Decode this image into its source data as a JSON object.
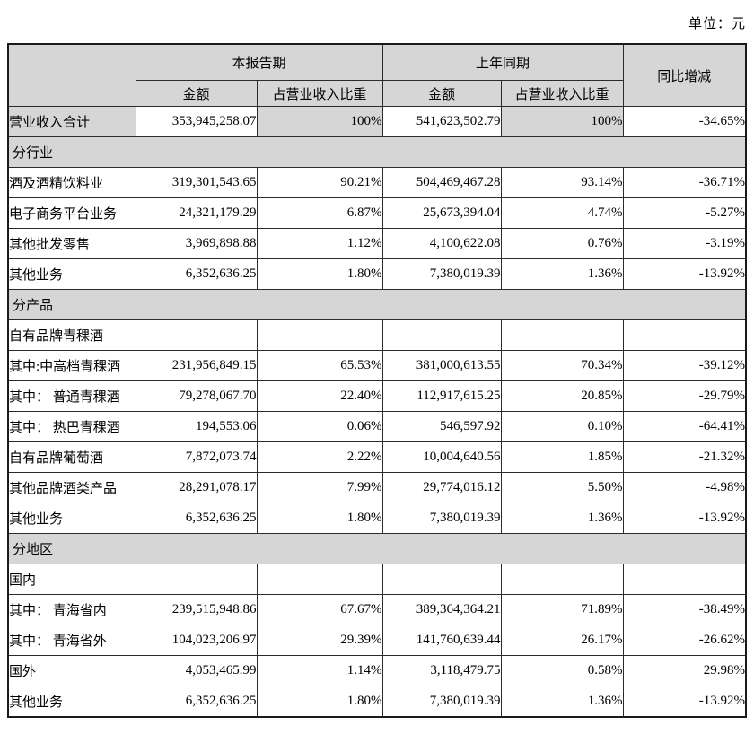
{
  "unit_label": "单位：元",
  "accent_colors": {
    "header_fill": "#d6d6d6",
    "border": "#2b2b2b",
    "background": "#ffffff"
  },
  "table": {
    "header": {
      "corner": "",
      "col_current": "本报告期",
      "col_prior": "上年同期",
      "col_yoy": "同比增减",
      "subs": [
        "金额",
        "占营业收入比重",
        "金额",
        "占营业收入比重"
      ]
    },
    "rows": [
      {
        "type": "data",
        "shaded": true,
        "label": "营业收入合计",
        "cur_amt": "353,945,258.07",
        "cur_pct": "100%",
        "pri_amt": "541,623,502.79",
        "pri_pct": "100%",
        "yoy": "-34.65%"
      },
      {
        "type": "section",
        "label": "分行业"
      },
      {
        "type": "data",
        "shaded": false,
        "label": "酒及酒精饮料业",
        "cur_amt": "319,301,543.65",
        "cur_pct": "90.21%",
        "pri_amt": "504,469,467.28",
        "pri_pct": "93.14%",
        "yoy": "-36.71%"
      },
      {
        "type": "data",
        "shaded": false,
        "label": "电子商务平台业务",
        "cur_amt": "24,321,179.29",
        "cur_pct": "6.87%",
        "pri_amt": "25,673,394.04",
        "pri_pct": "4.74%",
        "yoy": "-5.27%"
      },
      {
        "type": "data",
        "shaded": false,
        "label": "其他批发零售",
        "cur_amt": "3,969,898.88",
        "cur_pct": "1.12%",
        "pri_amt": "4,100,622.08",
        "pri_pct": "0.76%",
        "yoy": "-3.19%"
      },
      {
        "type": "data",
        "shaded": false,
        "label": "其他业务",
        "cur_amt": "6,352,636.25",
        "cur_pct": "1.80%",
        "pri_amt": "7,380,019.39",
        "pri_pct": "1.36%",
        "yoy": "-13.92%"
      },
      {
        "type": "section",
        "label": "分产品"
      },
      {
        "type": "data",
        "shaded": false,
        "label": "自有品牌青稞酒",
        "cur_amt": "",
        "cur_pct": "",
        "pri_amt": "",
        "pri_pct": "",
        "yoy": ""
      },
      {
        "type": "data",
        "shaded": false,
        "label": "其中:中高档青稞酒",
        "cur_amt": "231,956,849.15",
        "cur_pct": "65.53%",
        "pri_amt": "381,000,613.55",
        "pri_pct": "70.34%",
        "yoy": "-39.12%"
      },
      {
        "type": "data",
        "shaded": false,
        "label": "其中： 普通青稞酒",
        "cur_amt": "79,278,067.70",
        "cur_pct": "22.40%",
        "pri_amt": "112,917,615.25",
        "pri_pct": "20.85%",
        "yoy": "-29.79%"
      },
      {
        "type": "data",
        "shaded": false,
        "label": "其中： 热巴青稞酒",
        "cur_amt": "194,553.06",
        "cur_pct": "0.06%",
        "pri_amt": "546,597.92",
        "pri_pct": "0.10%",
        "yoy": "-64.41%"
      },
      {
        "type": "data",
        "shaded": false,
        "label": "自有品牌葡萄酒",
        "cur_amt": "7,872,073.74",
        "cur_pct": "2.22%",
        "pri_amt": "10,004,640.56",
        "pri_pct": "1.85%",
        "yoy": "-21.32%"
      },
      {
        "type": "data",
        "shaded": false,
        "label": "其他品牌酒类产品",
        "cur_amt": "28,291,078.17",
        "cur_pct": "7.99%",
        "pri_amt": "29,774,016.12",
        "pri_pct": "5.50%",
        "yoy": "-4.98%"
      },
      {
        "type": "data",
        "shaded": false,
        "label": "其他业务",
        "cur_amt": "6,352,636.25",
        "cur_pct": "1.80%",
        "pri_amt": "7,380,019.39",
        "pri_pct": "1.36%",
        "yoy": "-13.92%"
      },
      {
        "type": "section",
        "label": "分地区"
      },
      {
        "type": "data",
        "shaded": false,
        "label": "国内",
        "cur_amt": "",
        "cur_pct": "",
        "pri_amt": "",
        "pri_pct": "",
        "yoy": ""
      },
      {
        "type": "data",
        "shaded": false,
        "label": "其中： 青海省内",
        "cur_amt": "239,515,948.86",
        "cur_pct": "67.67%",
        "pri_amt": "389,364,364.21",
        "pri_pct": "71.89%",
        "yoy": "-38.49%"
      },
      {
        "type": "data",
        "shaded": false,
        "label": "其中： 青海省外",
        "cur_amt": "104,023,206.97",
        "cur_pct": "29.39%",
        "pri_amt": "141,760,639.44",
        "pri_pct": "26.17%",
        "yoy": "-26.62%"
      },
      {
        "type": "data",
        "shaded": false,
        "label": "国外",
        "cur_amt": "4,053,465.99",
        "cur_pct": "1.14%",
        "pri_amt": "3,118,479.75",
        "pri_pct": "0.58%",
        "yoy": "29.98%"
      },
      {
        "type": "data",
        "shaded": false,
        "label": "其他业务",
        "cur_amt": "6,352,636.25",
        "cur_pct": "1.80%",
        "pri_amt": "7,380,019.39",
        "pri_pct": "1.36%",
        "yoy": "-13.92%"
      }
    ]
  }
}
